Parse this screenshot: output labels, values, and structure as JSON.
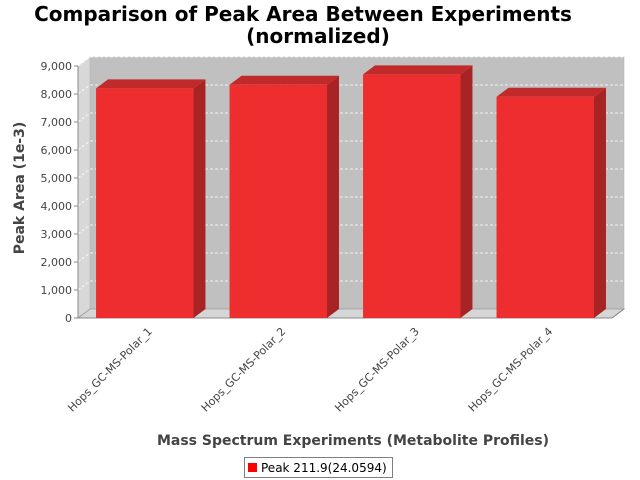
{
  "chart_data": {
    "type": "bar",
    "title": [
      "Comparison of Peak Area Between Experiments",
      "(normalized)"
    ],
    "xlabel": "Mass Spectrum Experiments (Metabolite Profiles)",
    "ylabel": "Peak Area (1e-3)",
    "categories": [
      "Hops_GC-MS-Polar_1",
      "Hops_GC-MS-Polar_2",
      "Hops_GC-MS-Polar_3",
      "Hops_GC-MS-Polar_4"
    ],
    "series": [
      {
        "name": "Peak 211.9(24.0594)",
        "values": [
          8200,
          8330,
          8700,
          7900
        ]
      }
    ],
    "ylim": [
      0,
      9000
    ],
    "yticks": [
      0,
      1000,
      2000,
      3000,
      4000,
      5000,
      6000,
      7000,
      8000,
      9000
    ],
    "ytick_labels": [
      "0",
      "1,000",
      "2,000",
      "3,000",
      "4,000",
      "5,000",
      "6,000",
      "7,000",
      "8,000",
      "9,000"
    ],
    "grid": true,
    "three_d": true,
    "legend_position": "bottom-center",
    "colors": {
      "bar_front": "#ee2e2e",
      "bar_side": "#a82424",
      "bar_top": "#c02a2a",
      "plot_background": "#c0c0c0",
      "floor": "#d6d6d6",
      "legend_swatch": "#ff0000"
    }
  }
}
